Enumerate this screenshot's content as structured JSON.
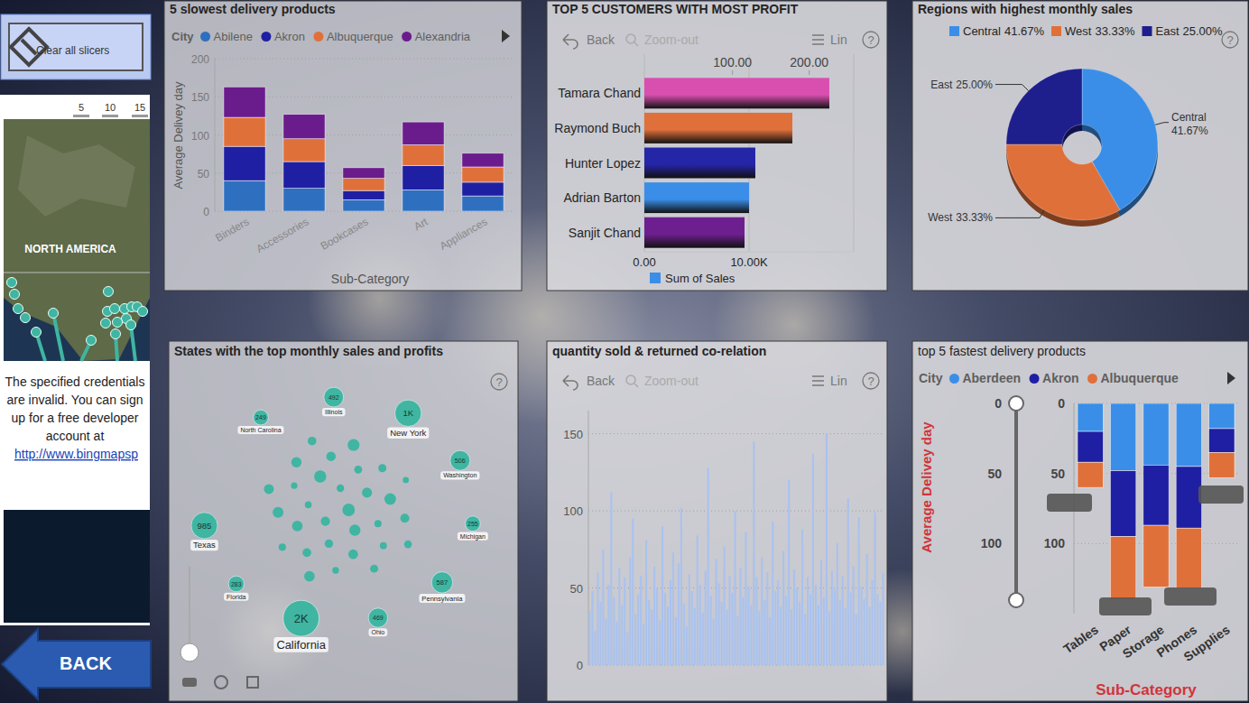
{
  "page": {
    "clear_button": "Clear all slicers",
    "back_button": "BACK",
    "toolbar": {
      "back": "Back",
      "zoom_out": "Zoom-out",
      "scale": "Lin",
      "help": "?"
    },
    "map": {
      "region_label": "NORTH AMERICA",
      "scale_labels": [
        "5",
        "10",
        "15"
      ],
      "message": "The specified credentials are invalid. You can sign up for a free developer account at",
      "link": "http://www.bingmapsp"
    }
  },
  "chart_data": [
    {
      "type": "bar",
      "title": "5 slowest delivery products",
      "legend_title": "City",
      "legend": "top",
      "stacked": true,
      "grid": true,
      "categories": [
        "Binders",
        "Accessories",
        "Bookcases",
        "Art",
        "Appliances"
      ],
      "series": [
        {
          "name": "Abilene",
          "color": "#2f6fbf",
          "values": [
            40,
            30,
            15,
            28,
            20
          ]
        },
        {
          "name": "Akron",
          "color": "#1f1fa3",
          "values": [
            45,
            35,
            12,
            32,
            18
          ]
        },
        {
          "name": "Albuquerque",
          "color": "#e0703a",
          "values": [
            38,
            30,
            16,
            27,
            20
          ]
        },
        {
          "name": "Alexandria",
          "color": "#6b1c8c",
          "values": [
            40,
            32,
            14,
            30,
            18
          ]
        }
      ],
      "ylim": [
        0,
        200
      ],
      "yticks": [
        0,
        50,
        100,
        150,
        200
      ],
      "y_label": "Average Delivey day",
      "x_label": "Sub-Category"
    },
    {
      "type": "bar",
      "orientation": "horizontal",
      "title": "TOP 5 CUSTOMERS WITH MOST PROFIT",
      "categories": [
        "Tamara Chand",
        "Raymond Buch",
        "Hunter Lopez",
        "Adrian Barton",
        "Sanjit Chand"
      ],
      "series": [
        {
          "name": "Sum of Sales",
          "color": "#3a8ee8",
          "colors": [
            "#d94fb0",
            "#e0703a",
            "#2525a8",
            "#3a8ee8",
            "#6e1f8f"
          ],
          "values": [
            17670,
            14140,
            10600,
            10000,
            9570
          ]
        }
      ],
      "xlim": [
        0,
        20000
      ],
      "xticks": [
        {
          "value": 0,
          "label": "0.00"
        },
        {
          "value": 10000,
          "label": "10.00K"
        }
      ],
      "x2lim": [
        -15,
        258
      ],
      "x2ticks": [
        {
          "value": 100,
          "label": "100.00"
        },
        {
          "value": 200,
          "label": "200.00"
        }
      ],
      "grid": true,
      "legend": "bottom"
    },
    {
      "type": "pie",
      "title": "Regions with highest monthly sales",
      "categories": [
        "Central",
        "West",
        "East"
      ],
      "values": [
        41.67,
        33.33,
        25.0
      ],
      "value_labels": [
        "41.67%",
        "33.33%",
        "25.00%"
      ],
      "colors": [
        "#3a8ee8",
        "#e0703a",
        "#1e1e8c"
      ],
      "legend": "top",
      "data_labels": true
    },
    {
      "type": "bubble",
      "title": "States with the top monthly sales and profits",
      "color": "#3fb5a2",
      "data_labels": true,
      "categories": [
        "North Carolina",
        "Illinois",
        "New York",
        "Washington",
        "Michigan",
        "Pennsylvania",
        "Ohio",
        "California",
        "Florida",
        "Texas",
        null,
        null,
        null,
        null,
        null,
        null,
        null,
        null,
        null,
        null,
        null,
        null,
        null,
        null,
        null,
        null,
        null,
        null,
        null,
        null,
        null,
        null,
        null,
        null,
        null,
        null,
        null,
        null,
        null,
        null
      ],
      "values": [
        249,
        492,
        1000,
        506,
        255,
        587,
        469,
        2000,
        283,
        985,
        150,
        60,
        30,
        110,
        20,
        80,
        45,
        140,
        25,
        95,
        35,
        70,
        15,
        120,
        50,
        65,
        22,
        100,
        40,
        18,
        85,
        55,
        28,
        130,
        38,
        75,
        12,
        90,
        48,
        33
      ],
      "value_labels": [
        "249",
        "492",
        "1K",
        "506",
        "255",
        "587",
        "469",
        "2K",
        "283",
        "985",
        null,
        null,
        null,
        null,
        null,
        null,
        null,
        null,
        null,
        null,
        null,
        null,
        null,
        null,
        null,
        null,
        null,
        null,
        null,
        null,
        null,
        null,
        null,
        null,
        null,
        null,
        null,
        null,
        null,
        null
      ]
    },
    {
      "type": "bar",
      "title": "quantity sold & returned co-relation",
      "color": "#a9c2ef",
      "grid": true,
      "values": [
        35,
        48,
        22,
        60,
        41,
        75,
        30,
        52,
        112,
        44,
        28,
        63,
        39,
        57,
        21,
        70,
        95,
        33,
        46,
        58,
        27,
        81,
        42,
        36,
        64,
        50,
        29,
        90,
        47,
        38,
        55,
        73,
        31,
        66,
        102,
        40,
        25,
        59,
        48,
        37,
        84,
        52,
        34,
        61,
        128,
        45,
        30,
        69,
        53,
        41,
        77,
        36,
        58,
        47,
        100,
        32,
        63,
        44,
        86,
        51,
        39,
        145,
        57,
        35,
        70,
        42,
        60,
        31,
        93,
        48,
        55,
        38,
        74,
        45,
        120,
        36,
        62,
        50,
        41,
        88,
        33,
        57,
        46,
        137,
        52,
        39,
        68,
        44,
        150,
        35,
        61,
        49,
        79,
        42,
        58,
        37,
        108,
        47,
        64,
        33,
        96,
        51,
        43,
        72,
        38,
        55,
        99,
        46,
        41,
        60
      ],
      "ylim": [
        0,
        165
      ],
      "yticks": [
        0,
        50,
        100,
        150
      ]
    },
    {
      "type": "bar",
      "title": "top 5 fastest delivery products",
      "legend_title": "City",
      "legend": "top",
      "stacked": true,
      "grid": true,
      "categories": [
        "Tables",
        "Paper",
        "Storage",
        "Phones",
        "Supplies"
      ],
      "series": [
        {
          "name": "Aberdeen",
          "color": "#3a8ee8",
          "values": [
            20,
            48,
            44,
            45,
            18
          ]
        },
        {
          "name": "Akron",
          "color": "#1f1fa3",
          "values": [
            22,
            47,
            43,
            44,
            17
          ]
        },
        {
          "name": "Albuquerque",
          "color": "#e0703a",
          "values": [
            18,
            45,
            44,
            43,
            18
          ]
        }
      ],
      "ylim": [
        150,
        0
      ],
      "yticks": [
        0,
        50,
        100
      ],
      "y_label": "Average Delivey day",
      "x_label": "Sub-Category"
    }
  ]
}
